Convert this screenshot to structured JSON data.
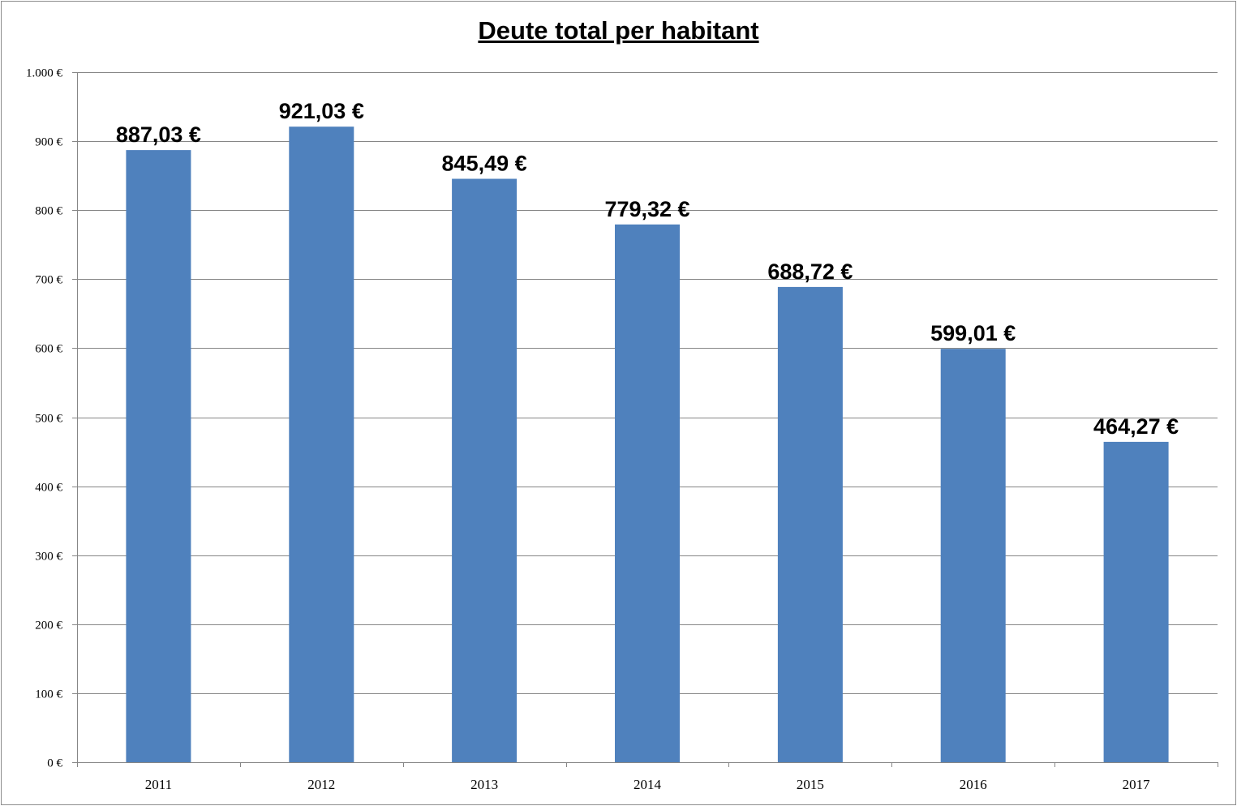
{
  "chart_data": {
    "type": "bar",
    "title": "Deute total per habitant",
    "xlabel": "",
    "ylabel": "",
    "categories": [
      "2011",
      "2012",
      "2013",
      "2014",
      "2015",
      "2016",
      "2017"
    ],
    "values": [
      887.03,
      921.03,
      845.49,
      779.32,
      688.72,
      599.01,
      464.27
    ],
    "data_labels": [
      "887,03 €",
      "921,03 €",
      "845,49 €",
      "779,32 €",
      "688,72 €",
      "599,01 €",
      "464,27 €"
    ],
    "ylim": [
      0,
      1000
    ],
    "y_ticks": [
      0,
      100,
      200,
      300,
      400,
      500,
      600,
      700,
      800,
      900,
      1000
    ],
    "y_tick_labels": [
      "0 €",
      "100 €",
      "200 €",
      "300 €",
      "400 €",
      "500 €",
      "600 €",
      "700 €",
      "800 €",
      "900 €",
      "1.000 €"
    ],
    "grid": true,
    "legend": "none",
    "colors": {
      "bar": "#4F81BD",
      "grid": "#868686",
      "axis": "#868686",
      "text": "#000000"
    }
  }
}
